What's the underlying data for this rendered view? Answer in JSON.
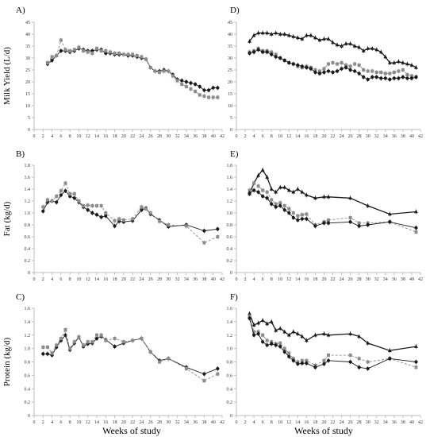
{
  "chart_data": [
    {
      "panel": "A)",
      "type": "line",
      "ylabel": "Milk Yield (L/d)",
      "xlim": [
        0,
        42
      ],
      "ylim": [
        0,
        45
      ],
      "yticks": [
        0,
        5,
        10,
        15,
        20,
        25,
        30,
        35,
        40,
        45
      ],
      "series": [
        {
          "style": "solid-black-circle",
          "x": [
            3,
            4,
            5,
            6,
            7,
            8,
            9,
            10,
            11,
            12,
            13,
            14,
            15,
            16,
            17,
            18,
            19,
            20,
            21,
            22,
            23,
            24,
            25,
            26,
            27,
            28,
            29,
            30,
            31,
            32,
            33,
            34,
            35,
            36,
            37,
            38,
            39,
            40,
            41
          ],
          "y": [
            27.5,
            29,
            31,
            33,
            33,
            32.5,
            33,
            34,
            33.5,
            33,
            33,
            33.5,
            33.5,
            32,
            32,
            31.5,
            31.5,
            31.5,
            31,
            31,
            30.5,
            30,
            29.5,
            26,
            24.5,
            24.5,
            25,
            24.5,
            23,
            21,
            20.5,
            20,
            19.5,
            19,
            18,
            16.5,
            16.5,
            17.5,
            17.5
          ]
        },
        {
          "style": "dashed-gray-square",
          "x": [
            3,
            4,
            5,
            6,
            7,
            8,
            9,
            10,
            11,
            12,
            13,
            14,
            15,
            16,
            17,
            18,
            19,
            20,
            21,
            22,
            23,
            24,
            25,
            26,
            27,
            28,
            29,
            30,
            31,
            32,
            33,
            34,
            35,
            36,
            37,
            38,
            39,
            40,
            41
          ],
          "y": [
            28,
            30.5,
            31,
            37.5,
            33.5,
            33,
            33.5,
            34.5,
            33,
            32.5,
            32,
            34,
            33,
            33,
            32.5,
            32,
            32,
            31.5,
            31.5,
            31.5,
            31,
            30.5,
            29.5,
            26,
            24.5,
            24,
            24.5,
            24.5,
            22.5,
            20.5,
            19,
            18,
            17,
            16,
            14.5,
            14,
            13.5,
            13.5,
            13.5
          ]
        }
      ]
    },
    {
      "panel": "D)",
      "type": "line",
      "xlim": [
        0,
        42
      ],
      "ylim": [
        0,
        45
      ],
      "yticks": [
        0,
        5,
        10,
        15,
        20,
        25,
        30,
        35,
        40,
        45
      ],
      "series": [
        {
          "style": "solid-black-triangle",
          "x": [
            3,
            4,
            5,
            6,
            7,
            8,
            9,
            10,
            11,
            12,
            13,
            14,
            15,
            16,
            17,
            18,
            19,
            20,
            21,
            22,
            23,
            24,
            25,
            26,
            27,
            28,
            29,
            30,
            31,
            32,
            33,
            34,
            35,
            36,
            37,
            38,
            39,
            40,
            41
          ],
          "y": [
            37,
            39.5,
            40.5,
            40.5,
            40.5,
            40,
            40.5,
            40,
            40,
            39.5,
            39,
            38.5,
            38,
            39.5,
            39.5,
            38.5,
            37.5,
            38,
            38,
            36.5,
            35.5,
            35,
            36,
            36,
            35,
            34.5,
            33,
            34,
            34,
            33.5,
            32.5,
            30.5,
            28,
            28,
            28.5,
            28,
            27.5,
            27,
            26
          ]
        },
        {
          "style": "dashed-gray-square",
          "x": [
            3,
            4,
            5,
            6,
            7,
            8,
            9,
            10,
            11,
            12,
            13,
            14,
            15,
            16,
            17,
            18,
            19,
            20,
            21,
            22,
            23,
            24,
            25,
            26,
            27,
            28,
            29,
            30,
            31,
            32,
            33,
            34,
            35,
            36,
            37,
            38,
            39,
            40,
            41
          ],
          "y": [
            32.5,
            33,
            34,
            33,
            33,
            32.5,
            31.5,
            30,
            29,
            28,
            27.5,
            26.5,
            26,
            26.5,
            26,
            25,
            24.5,
            25.5,
            27.5,
            28,
            27.5,
            28,
            27,
            26.5,
            27.5,
            27,
            25,
            24.5,
            24.5,
            24,
            24,
            23.5,
            23.5,
            24,
            24.5,
            25,
            23,
            22.5,
            22
          ]
        },
        {
          "style": "solid-black-circle",
          "x": [
            3,
            4,
            5,
            6,
            7,
            8,
            9,
            10,
            11,
            12,
            13,
            14,
            15,
            16,
            17,
            18,
            19,
            20,
            21,
            22,
            23,
            24,
            25,
            26,
            27,
            28,
            29,
            30,
            31,
            32,
            33,
            34,
            35,
            36,
            37,
            38,
            39,
            40,
            41
          ],
          "y": [
            32,
            32.5,
            33.5,
            32.5,
            32.5,
            31.5,
            30.5,
            30,
            29,
            28,
            27.5,
            27,
            26.5,
            26,
            25.5,
            24,
            23.5,
            24,
            24.5,
            24,
            24.5,
            25.5,
            26,
            25,
            24.5,
            23.5,
            22,
            21,
            22,
            22,
            21.5,
            21.5,
            21,
            21.5,
            21.5,
            22,
            21.5,
            21.5,
            22
          ]
        }
      ]
    },
    {
      "panel": "B)",
      "type": "line",
      "ylabel": "Fat (kg/d)",
      "xlim": [
        0,
        42
      ],
      "ylim": [
        0,
        1.8
      ],
      "yticks": [
        0,
        0.2,
        0.4,
        0.6,
        0.8,
        1.0,
        1.2,
        1.4,
        1.6,
        1.8
      ],
      "series": [
        {
          "style": "solid-black-circle",
          "x": [
            2,
            3,
            4,
            5,
            6,
            7,
            8,
            9,
            10,
            11,
            12,
            13,
            14,
            15,
            16,
            18,
            19,
            20,
            22,
            24,
            25,
            26,
            28,
            30,
            34,
            38,
            41
          ],
          "y": [
            1.03,
            1.18,
            1.2,
            1.18,
            1.3,
            1.37,
            1.28,
            1.25,
            1.18,
            1.1,
            1.05,
            1.0,
            0.97,
            0.93,
            0.95,
            0.78,
            0.86,
            0.85,
            0.87,
            1.05,
            1.08,
            0.98,
            0.88,
            0.77,
            0.8,
            0.7,
            0.73
          ]
        },
        {
          "style": "dashed-gray-square",
          "x": [
            2,
            3,
            4,
            5,
            6,
            7,
            8,
            9,
            10,
            11,
            12,
            13,
            14,
            15,
            16,
            18,
            19,
            20,
            22,
            24,
            25,
            26,
            28,
            30,
            34,
            38,
            41
          ],
          "y": [
            1.1,
            1.22,
            1.2,
            1.28,
            1.37,
            1.5,
            1.32,
            1.32,
            1.2,
            1.12,
            1.13,
            1.12,
            1.12,
            1.12,
            1.0,
            0.87,
            0.9,
            0.88,
            0.9,
            1.1,
            1.07,
            1.0,
            0.86,
            0.8,
            0.78,
            0.5,
            0.6
          ]
        }
      ]
    },
    {
      "panel": "E)",
      "type": "line",
      "xlim": [
        0,
        42
      ],
      "ylim": [
        0,
        1.8
      ],
      "yticks": [
        0,
        0.2,
        0.4,
        0.6,
        0.8,
        1.0,
        1.2,
        1.4,
        1.6,
        1.8
      ],
      "series": [
        {
          "style": "solid-black-triangle",
          "x": [
            3,
            4,
            5,
            6,
            7,
            8,
            9,
            10,
            11,
            12,
            13,
            14,
            15,
            16,
            18,
            20,
            21,
            26,
            30,
            35,
            41
          ],
          "y": [
            1.32,
            1.5,
            1.63,
            1.72,
            1.6,
            1.4,
            1.35,
            1.43,
            1.43,
            1.38,
            1.35,
            1.4,
            1.35,
            1.3,
            1.25,
            1.27,
            1.27,
            1.25,
            1.12,
            0.98,
            1.02
          ]
        },
        {
          "style": "dashed-gray-square",
          "x": [
            3,
            4,
            5,
            6,
            7,
            8,
            9,
            10,
            11,
            12,
            13,
            14,
            15,
            16,
            18,
            20,
            21,
            26,
            28,
            30,
            35,
            41
          ],
          "y": [
            1.38,
            1.5,
            1.45,
            1.38,
            1.35,
            1.22,
            1.15,
            1.17,
            1.12,
            1.07,
            1.0,
            0.95,
            0.97,
            0.98,
            0.8,
            0.85,
            0.88,
            0.92,
            0.83,
            0.83,
            0.85,
            0.68
          ]
        },
        {
          "style": "solid-black-circle",
          "x": [
            3,
            4,
            5,
            6,
            7,
            8,
            9,
            10,
            11,
            12,
            13,
            14,
            15,
            16,
            18,
            20,
            21,
            26,
            28,
            30,
            35,
            41
          ],
          "y": [
            1.33,
            1.38,
            1.35,
            1.28,
            1.25,
            1.15,
            1.1,
            1.12,
            1.05,
            1.0,
            0.92,
            0.88,
            0.9,
            0.9,
            0.78,
            0.83,
            0.83,
            0.85,
            0.78,
            0.8,
            0.85,
            0.75
          ]
        }
      ]
    },
    {
      "panel": "C)",
      "type": "line",
      "ylabel": "Protein (kg/d)",
      "xlim": [
        0,
        42
      ],
      "ylim": [
        0,
        1.6
      ],
      "yticks": [
        0,
        0.2,
        0.4,
        0.6,
        0.8,
        1.0,
        1.2,
        1.4,
        1.6
      ],
      "series": [
        {
          "style": "solid-black-circle",
          "x": [
            2,
            3,
            4,
            5,
            6,
            7,
            8,
            9,
            10,
            11,
            12,
            13,
            14,
            15,
            16,
            18,
            20,
            22,
            24,
            26,
            28,
            30,
            34,
            38,
            41
          ],
          "y": [
            0.92,
            0.92,
            0.9,
            1.02,
            1.12,
            1.2,
            0.98,
            1.08,
            1.17,
            1.03,
            1.07,
            1.08,
            1.15,
            1.18,
            1.13,
            1.03,
            1.08,
            1.12,
            1.15,
            0.95,
            0.82,
            0.85,
            0.72,
            0.62,
            0.7
          ]
        },
        {
          "style": "dashed-gray-square",
          "x": [
            2,
            3,
            4,
            5,
            6,
            7,
            8,
            9,
            10,
            11,
            12,
            13,
            14,
            15,
            16,
            18,
            20,
            22,
            24,
            26,
            28,
            30,
            34,
            38,
            41
          ],
          "y": [
            1.02,
            1.02,
            0.93,
            1.05,
            1.15,
            1.28,
            1.0,
            1.1,
            1.17,
            1.05,
            1.1,
            1.1,
            1.2,
            1.2,
            1.12,
            1.15,
            1.1,
            1.12,
            1.15,
            0.95,
            0.8,
            0.85,
            0.7,
            0.52,
            0.62
          ]
        }
      ]
    },
    {
      "panel": "F)",
      "type": "line",
      "xlim": [
        0,
        42
      ],
      "ylim": [
        0,
        1.6
      ],
      "yticks": [
        0,
        0.2,
        0.4,
        0.6,
        0.8,
        1.0,
        1.2,
        1.4,
        1.6
      ],
      "series": [
        {
          "style": "solid-black-triangle",
          "x": [
            3,
            4,
            5,
            6,
            7,
            8,
            9,
            10,
            11,
            12,
            13,
            14,
            15,
            16,
            18,
            20,
            21,
            26,
            28,
            30,
            35,
            41
          ],
          "y": [
            1.52,
            1.35,
            1.38,
            1.42,
            1.37,
            1.4,
            1.27,
            1.3,
            1.25,
            1.2,
            1.25,
            1.22,
            1.18,
            1.12,
            1.2,
            1.22,
            1.2,
            1.22,
            1.18,
            1.08,
            0.97,
            1.03
          ]
        },
        {
          "style": "dashed-gray-square",
          "x": [
            3,
            4,
            5,
            6,
            7,
            8,
            9,
            10,
            11,
            12,
            13,
            14,
            15,
            16,
            18,
            20,
            21,
            26,
            28,
            30,
            35,
            41
          ],
          "y": [
            1.48,
            1.25,
            1.25,
            1.2,
            1.12,
            1.1,
            1.07,
            1.08,
            1.0,
            0.93,
            0.85,
            0.8,
            0.82,
            0.82,
            0.75,
            0.82,
            0.9,
            0.9,
            0.85,
            0.8,
            0.85,
            0.72
          ]
        },
        {
          "style": "solid-black-circle",
          "x": [
            3,
            4,
            5,
            6,
            7,
            8,
            9,
            10,
            11,
            12,
            13,
            14,
            15,
            16,
            18,
            20,
            21,
            26,
            28,
            30,
            35,
            41
          ],
          "y": [
            1.45,
            1.2,
            1.22,
            1.1,
            1.05,
            1.07,
            1.05,
            1.03,
            0.95,
            0.88,
            0.82,
            0.77,
            0.78,
            0.78,
            0.72,
            0.77,
            0.82,
            0.8,
            0.72,
            0.7,
            0.85,
            0.8
          ]
        }
      ]
    }
  ],
  "xticks": [
    "0",
    "2",
    "4",
    "6",
    "8",
    "10",
    "12",
    "14",
    "16",
    "18",
    "20",
    "22",
    "24",
    "26",
    "28",
    "30",
    "32",
    "34",
    "36",
    "38",
    "40",
    "42"
  ],
  "xlabel_left": "Weeks of study",
  "xlabel_right": "Weeks of study",
  "colors": {
    "black": "#1a1a1a",
    "gray": "#8c8c8c",
    "axis": "#bfbfbf"
  }
}
